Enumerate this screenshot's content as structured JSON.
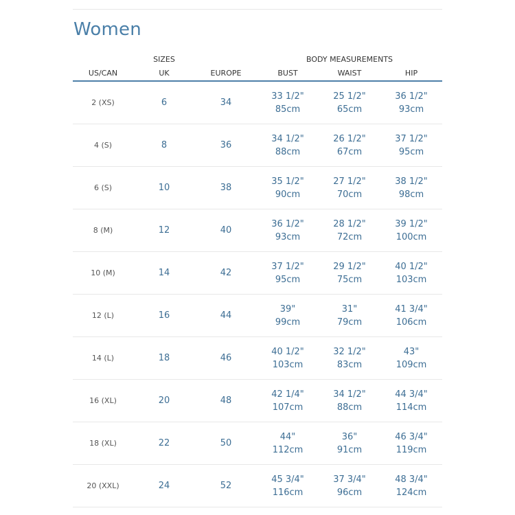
{
  "title": "Women",
  "header": {
    "group_sizes": "SIZES",
    "group_body": "BODY MEASUREMENTS",
    "columns": [
      "US/CAN",
      "UK",
      "EUROPE",
      "BUST",
      "WAIST",
      "HIP"
    ]
  },
  "rows": [
    {
      "us": "2 (XS)",
      "uk": "6",
      "eu": "34",
      "bust_in": "33 1/2\"",
      "bust_cm": "85cm",
      "waist_in": "25 1/2\"",
      "waist_cm": "65cm",
      "hip_in": "36 1/2\"",
      "hip_cm": "93cm"
    },
    {
      "us": "4 (S)",
      "uk": "8",
      "eu": "36",
      "bust_in": "34 1/2\"",
      "bust_cm": "88cm",
      "waist_in": "26 1/2\"",
      "waist_cm": "67cm",
      "hip_in": "37 1/2\"",
      "hip_cm": "95cm"
    },
    {
      "us": "6 (S)",
      "uk": "10",
      "eu": "38",
      "bust_in": "35 1/2\"",
      "bust_cm": "90cm",
      "waist_in": "27 1/2\"",
      "waist_cm": "70cm",
      "hip_in": "38 1/2\"",
      "hip_cm": "98cm"
    },
    {
      "us": "8 (M)",
      "uk": "12",
      "eu": "40",
      "bust_in": "36 1/2\"",
      "bust_cm": "93cm",
      "waist_in": "28 1/2\"",
      "waist_cm": "72cm",
      "hip_in": "39 1/2\"",
      "hip_cm": "100cm"
    },
    {
      "us": "10 (M)",
      "uk": "14",
      "eu": "42",
      "bust_in": "37 1/2\"",
      "bust_cm": "95cm",
      "waist_in": "29 1/2\"",
      "waist_cm": "75cm",
      "hip_in": "40 1/2\"",
      "hip_cm": "103cm"
    },
    {
      "us": "12 (L)",
      "uk": "16",
      "eu": "44",
      "bust_in": "39\"",
      "bust_cm": "99cm",
      "waist_in": "31\"",
      "waist_cm": "79cm",
      "hip_in": "41 3/4\"",
      "hip_cm": "106cm"
    },
    {
      "us": "14 (L)",
      "uk": "18",
      "eu": "46",
      "bust_in": "40 1/2\"",
      "bust_cm": "103cm",
      "waist_in": "32 1/2\"",
      "waist_cm": "83cm",
      "hip_in": "43\"",
      "hip_cm": "109cm"
    },
    {
      "us": "16 (XL)",
      "uk": "20",
      "eu": "48",
      "bust_in": "42 1/4\"",
      "bust_cm": "107cm",
      "waist_in": "34 1/2\"",
      "waist_cm": "88cm",
      "hip_in": "44 3/4\"",
      "hip_cm": "114cm"
    },
    {
      "us": "18 (XL)",
      "uk": "22",
      "eu": "50",
      "bust_in": "44\"",
      "bust_cm": "112cm",
      "waist_in": "36\"",
      "waist_cm": "91cm",
      "hip_in": "46 3/4\"",
      "hip_cm": "119cm"
    },
    {
      "us": "20 (XXL)",
      "uk": "24",
      "eu": "52",
      "bust_in": "45 3/4\"",
      "bust_cm": "116cm",
      "waist_in": "37 3/4\"",
      "waist_cm": "96cm",
      "hip_in": "48 3/4\"",
      "hip_cm": "124cm"
    }
  ],
  "colors": {
    "accent": "#4a7fa8",
    "value": "#3d6e94",
    "rule": "#4d7fa8"
  }
}
